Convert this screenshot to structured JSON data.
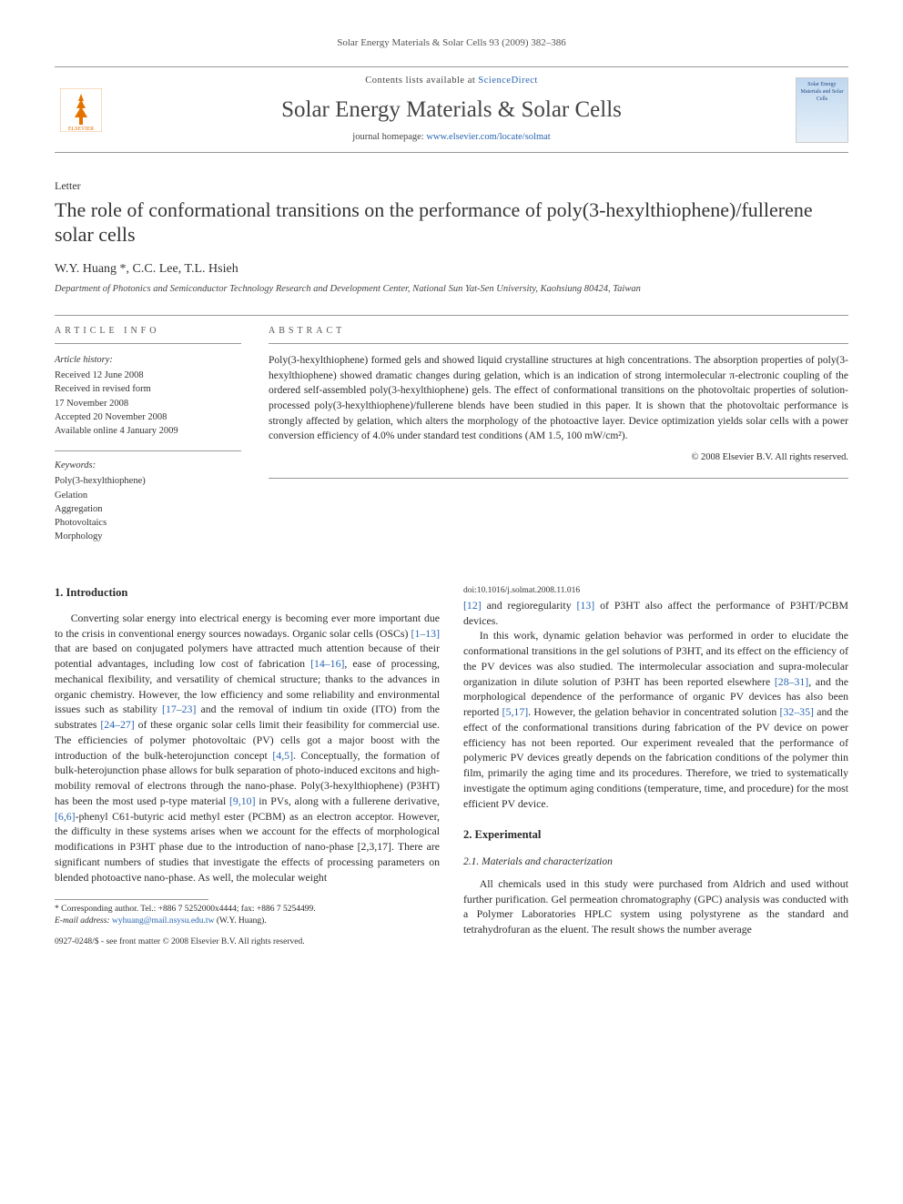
{
  "header": {
    "citation": "Solar Energy Materials & Solar Cells 93 (2009) 382–386",
    "publisher_logo_text": "ELSEVIER",
    "contents_prefix": "Contents lists available at ",
    "contents_link": "ScienceDirect",
    "journal_name": "Solar Energy Materials & Solar Cells",
    "homepage_prefix": "journal homepage: ",
    "homepage_link": "www.elsevier.com/locate/solmat",
    "cover_text": "Solar Energy Materials and Solar Cells"
  },
  "article": {
    "type": "Letter",
    "title": "The role of conformational transitions on the performance of poly(3-hexylthiophene)/fullerene solar cells",
    "authors": "W.Y. Huang *, C.C. Lee, T.L. Hsieh",
    "affiliation": "Department of Photonics and Semiconductor Technology Research and Development Center, National Sun Yat-Sen University, Kaohsiung 80424, Taiwan"
  },
  "info": {
    "label": "ARTICLE INFO",
    "history_head": "Article history:",
    "history_lines": [
      "Received 12 June 2008",
      "Received in revised form",
      "17 November 2008",
      "Accepted 20 November 2008",
      "Available online 4 January 2009"
    ],
    "keywords_head": "Keywords:",
    "keywords": [
      "Poly(3-hexylthiophene)",
      "Gelation",
      "Aggregation",
      "Photovoltaics",
      "Morphology"
    ]
  },
  "abstract": {
    "label": "ABSTRACT",
    "text": "Poly(3-hexylthiophene) formed gels and showed liquid crystalline structures at high concentrations. The absorption properties of poly(3-hexylthiophene) showed dramatic changes during gelation, which is an indication of strong intermolecular π-electronic coupling of the ordered self-assembled poly(3-hexylthiophene) gels. The effect of conformational transitions on the photovoltaic properties of solution-processed poly(3-hexylthiophene)/fullerene blends have been studied in this paper. It is shown that the photovoltaic performance is strongly affected by gelation, which alters the morphology of the photoactive layer. Device optimization yields solar cells with a power conversion efficiency of 4.0% under standard test conditions (AM 1.5, 100 mW/cm²).",
    "copyright": "© 2008 Elsevier B.V. All rights reserved."
  },
  "body": {
    "s1_head": "1. Introduction",
    "s1_p1": "Converting solar energy into electrical energy is becoming ever more important due to the crisis in conventional energy sources nowadays. Organic solar cells (OSCs) [1–13] that are based on conjugated polymers have attracted much attention because of their potential advantages, including low cost of fabrication [14–16], ease of processing, mechanical flexibility, and versatility of chemical structure; thanks to the advances in organic chemistry. However, the low efficiency and some reliability and environmental issues such as stability [17–23] and the removal of indium tin oxide (ITO) from the substrates [24–27] of these organic solar cells limit their feasibility for commercial use. The efficiencies of polymer photovoltaic (PV) cells got a major boost with the introduction of the bulk-heterojunction concept [4,5]. Conceptually, the formation of bulk-heterojunction phase allows for bulk separation of photo-induced excitons and high-mobility removal of electrons through the nano-phase. Poly(3-hexylthiophene) (P3HT) has been the most used p-type material [9,10] in PVs, along with a fullerene derivative, [6,6]-phenyl C61-butyric acid methyl ester (PCBM) as an electron acceptor. However, the difficulty in these systems arises when we account for the effects of morphological modifications in P3HT phase due to the introduction of nano-phase [2,3,17]. There are significant numbers of studies that investigate the effects of processing parameters on blended photoactive nano-phase. As well, the molecular weight",
    "s1_p2": "[12] and regioregularity [13] of P3HT also affect the performance of P3HT/PCBM devices.",
    "s1_p3": "In this work, dynamic gelation behavior was performed in order to elucidate the conformational transitions in the gel solutions of P3HT, and its effect on the efficiency of the PV devices was also studied. The intermolecular association and supra-molecular organization in dilute solution of P3HT has been reported elsewhere [28–31], and the morphological dependence of the performance of organic PV devices has also been reported [5,17]. However, the gelation behavior in concentrated solution [32–35] and the effect of the conformational transitions during fabrication of the PV device on power efficiency has not been reported. Our experiment revealed that the performance of polymeric PV devices greatly depends on the fabrication conditions of the polymer thin film, primarily the aging time and its procedures. Therefore, we tried to systematically investigate the optimum aging conditions (temperature, time, and procedure) for the most efficient PV device.",
    "s2_head": "2. Experimental",
    "s2_1_head": "2.1. Materials and characterization",
    "s2_1_p1": "All chemicals used in this study were purchased from Aldrich and used without further purification. Gel permeation chromatography (GPC) analysis was conducted with a Polymer Laboratories HPLC system using polystyrene as the standard and tetrahydrofuran as the eluent. The result shows the number average"
  },
  "footnote": {
    "corresponding": "* Corresponding author. Tel.: +886 7 5252000x4444; fax: +886 7 5254499.",
    "email_label": "E-mail address: ",
    "email": "wyhuang@mail.nsysu.edu.tw",
    "email_suffix": " (W.Y. Huang)."
  },
  "footer": {
    "line1": "0927-0248/$ - see front matter © 2008 Elsevier B.V. All rights reserved.",
    "line2": "doi:10.1016/j.solmat.2008.11.016"
  },
  "colors": {
    "link": "#2a65b0",
    "text": "#2a2a2a",
    "rule": "#999999",
    "publisher": "#e57200"
  }
}
